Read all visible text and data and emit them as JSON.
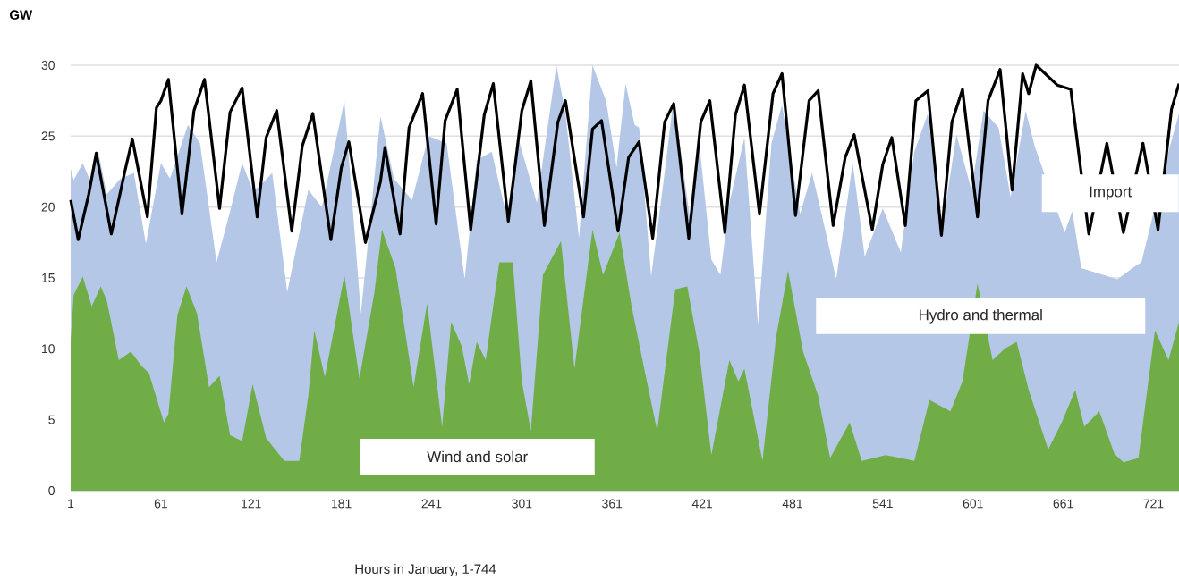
{
  "chart_data": {
    "type": "area",
    "xlabel": "Hours in January, 1-744",
    "ylabel": "GW",
    "xlim": [
      1,
      738
    ],
    "ylim": [
      0,
      30
    ],
    "xticks": [
      1,
      61,
      121,
      181,
      241,
      301,
      361,
      421,
      481,
      541,
      601,
      661,
      721
    ],
    "yticks": [
      0,
      5,
      10,
      15,
      20,
      25,
      30
    ],
    "grid": "y",
    "marker": "none",
    "annotations": [
      "Import"
    ],
    "series": [
      {
        "name": "Hydro and thermal",
        "color": "#b4c7e7",
        "x": [
          1,
          3,
          9,
          15,
          19,
          25,
          34,
          43,
          51,
          61,
          67,
          79,
          87,
          98,
          107,
          115,
          122,
          126,
          135,
          145,
          159,
          168,
          183,
          194,
          207,
          216,
          228,
          239,
          248,
          251,
          263,
          271,
          281,
          291,
          299,
          306,
          311,
          324,
          330,
          339,
          348,
          357,
          364,
          370,
          376,
          379,
          387,
          395,
          402,
          413,
          419,
          427,
          433,
          439,
          449,
          458,
          467,
          474,
          486,
          494,
          504,
          510,
          521,
          529,
          541,
          553,
          562,
          571,
          580,
          590,
          600,
          608,
          618,
          626,
          636,
          642,
          650,
          656,
          662,
          667,
          673,
          683,
          697,
          707,
          713,
          721,
          731,
          738
        ],
        "values": [
          22.7,
          21.9,
          23.1,
          21.6,
          24.1,
          20.9,
          22.0,
          22.4,
          17.4,
          23.1,
          22.0,
          25.8,
          24.5,
          16.1,
          19.7,
          23.1,
          21.2,
          21.4,
          22.4,
          14.0,
          21.2,
          20.0,
          27.5,
          12.5,
          26.4,
          22.0,
          20.5,
          25.0,
          null,
          24.5,
          14.9,
          23.3,
          23.9,
          19.3,
          24.7,
          null,
          20.3,
          30.0,
          26.6,
          17.8,
          30.0,
          27.5,
          22.8,
          28.7,
          25.8,
          25.6,
          15.1,
          21.6,
          27.7,
          19.0,
          24.5,
          16.3,
          15.2,
          20.3,
          24.9,
          11.7,
          24.5,
          27.2,
          19.5,
          22.4,
          17.8,
          14.9,
          23.1,
          16.5,
          19.9,
          16.8,
          23.9,
          26.6,
          18.2,
          25.1,
          21.2,
          26.8,
          25.6,
          20.7,
          26.8,
          24.3,
          null,
          null,
          18.2,
          19.7,
          15.7,
          null,
          14.9,
          15.7,
          16.1,
          null,
          23.9,
          26.6
        ]
      },
      {
        "name": "Wind and solar",
        "color": "#70ad47",
        "x": [
          1,
          3,
          9,
          15,
          21,
          25,
          33,
          41,
          48,
          53,
          63,
          66,
          72,
          78,
          85,
          93,
          100,
          107,
          115,
          122,
          131,
          143,
          153,
          159,
          163,
          170,
          183,
          193,
          203,
          208,
          217,
          229,
          238,
          248,
          254,
          261,
          266,
          271,
          277,
          286,
          295,
          301,
          307,
          315,
          327,
          336,
          348,
          355,
          366,
          374,
          382,
          391,
          403,
          411,
          419,
          427,
          439,
          445,
          449,
          461,
          470,
          478,
          488,
          498,
          506,
          519,
          527,
          543,
          562,
          572,
          586,
          594,
          604,
          614,
          622,
          630,
          638,
          651,
          660,
          669,
          675,
          685,
          695,
          701,
          711,
          722,
          731,
          738
        ],
        "values": [
          10.6,
          13.8,
          15.1,
          13.0,
          14.4,
          13.4,
          9.2,
          9.8,
          8.8,
          8.3,
          4.8,
          5.4,
          12.4,
          14.4,
          12.5,
          7.3,
          8.1,
          3.9,
          3.5,
          7.5,
          3.7,
          2.1,
          2.1,
          6.7,
          11.3,
          8.0,
          15.2,
          7.9,
          14.0,
          18.4,
          15.7,
          7.3,
          13.2,
          4.5,
          11.9,
          10.2,
          7.5,
          10.5,
          9.2,
          16.1,
          16.1,
          7.7,
          4.2,
          15.2,
          17.6,
          8.6,
          18.4,
          15.2,
          18.2,
          13.0,
          8.8,
          4.2,
          14.2,
          14.4,
          9.8,
          2.5,
          9.2,
          7.7,
          8.6,
          2.1,
          10.8,
          15.5,
          9.8,
          6.7,
          2.3,
          4.8,
          2.1,
          2.5,
          2.1,
          6.4,
          5.6,
          7.7,
          14.6,
          9.2,
          10.0,
          10.5,
          7.1,
          2.9,
          4.8,
          7.1,
          4.5,
          5.6,
          2.6,
          2.0,
          2.3,
          11.3,
          9.2,
          11.9
        ]
      },
      {
        "type": "line",
        "color": "#000000",
        "x": [
          1,
          6,
          13,
          18,
          28,
          37,
          42,
          52,
          58,
          61,
          66,
          75,
          83,
          90,
          100,
          107,
          115,
          125,
          131,
          138,
          148,
          155,
          162,
          174,
          181,
          186,
          197,
          207,
          210,
          220,
          226,
          235,
          244,
          250,
          258,
          267,
          276,
          282,
          292,
          301,
          307,
          316,
          325,
          330,
          342,
          348,
          354,
          365,
          372,
          379,
          388,
          396,
          402,
          412,
          420,
          426,
          436,
          443,
          449,
          459,
          468,
          474,
          483,
          492,
          498,
          508,
          516,
          522,
          534,
          541,
          547,
          556,
          563,
          571,
          580,
          587,
          594,
          604,
          611,
          619,
          627,
          634,
          638,
          643,
          650,
          657,
          666,
          678,
          690,
          701,
          714,
          724,
          733,
          738
        ],
        "values": [
          20.5,
          17.7,
          20.9,
          23.8,
          18.1,
          22.5,
          24.8,
          19.3,
          27.0,
          27.5,
          29.0,
          19.5,
          26.8,
          29.0,
          19.9,
          26.7,
          28.4,
          19.3,
          24.9,
          26.8,
          18.3,
          24.3,
          26.6,
          17.7,
          22.8,
          24.6,
          17.5,
          21.8,
          24.2,
          18.1,
          25.6,
          28.0,
          18.8,
          26.1,
          28.3,
          18.4,
          26.5,
          28.7,
          19.0,
          26.8,
          28.9,
          18.7,
          26.0,
          27.5,
          19.3,
          25.5,
          26.1,
          18.3,
          23.5,
          24.6,
          17.8,
          26.0,
          27.3,
          17.8,
          26.0,
          27.5,
          18.2,
          26.5,
          28.6,
          19.5,
          28.0,
          29.4,
          19.4,
          27.5,
          28.2,
          18.7,
          23.5,
          25.1,
          18.4,
          23.0,
          24.9,
          18.7,
          27.5,
          28.2,
          18.0,
          26.0,
          28.3,
          19.3,
          27.5,
          29.7,
          21.2,
          29.4,
          28.0,
          30.0,
          null,
          28.6,
          28.3,
          18.1,
          24.5,
          18.2,
          24.5,
          18.4,
          26.9,
          28.7
        ]
      }
    ]
  }
}
